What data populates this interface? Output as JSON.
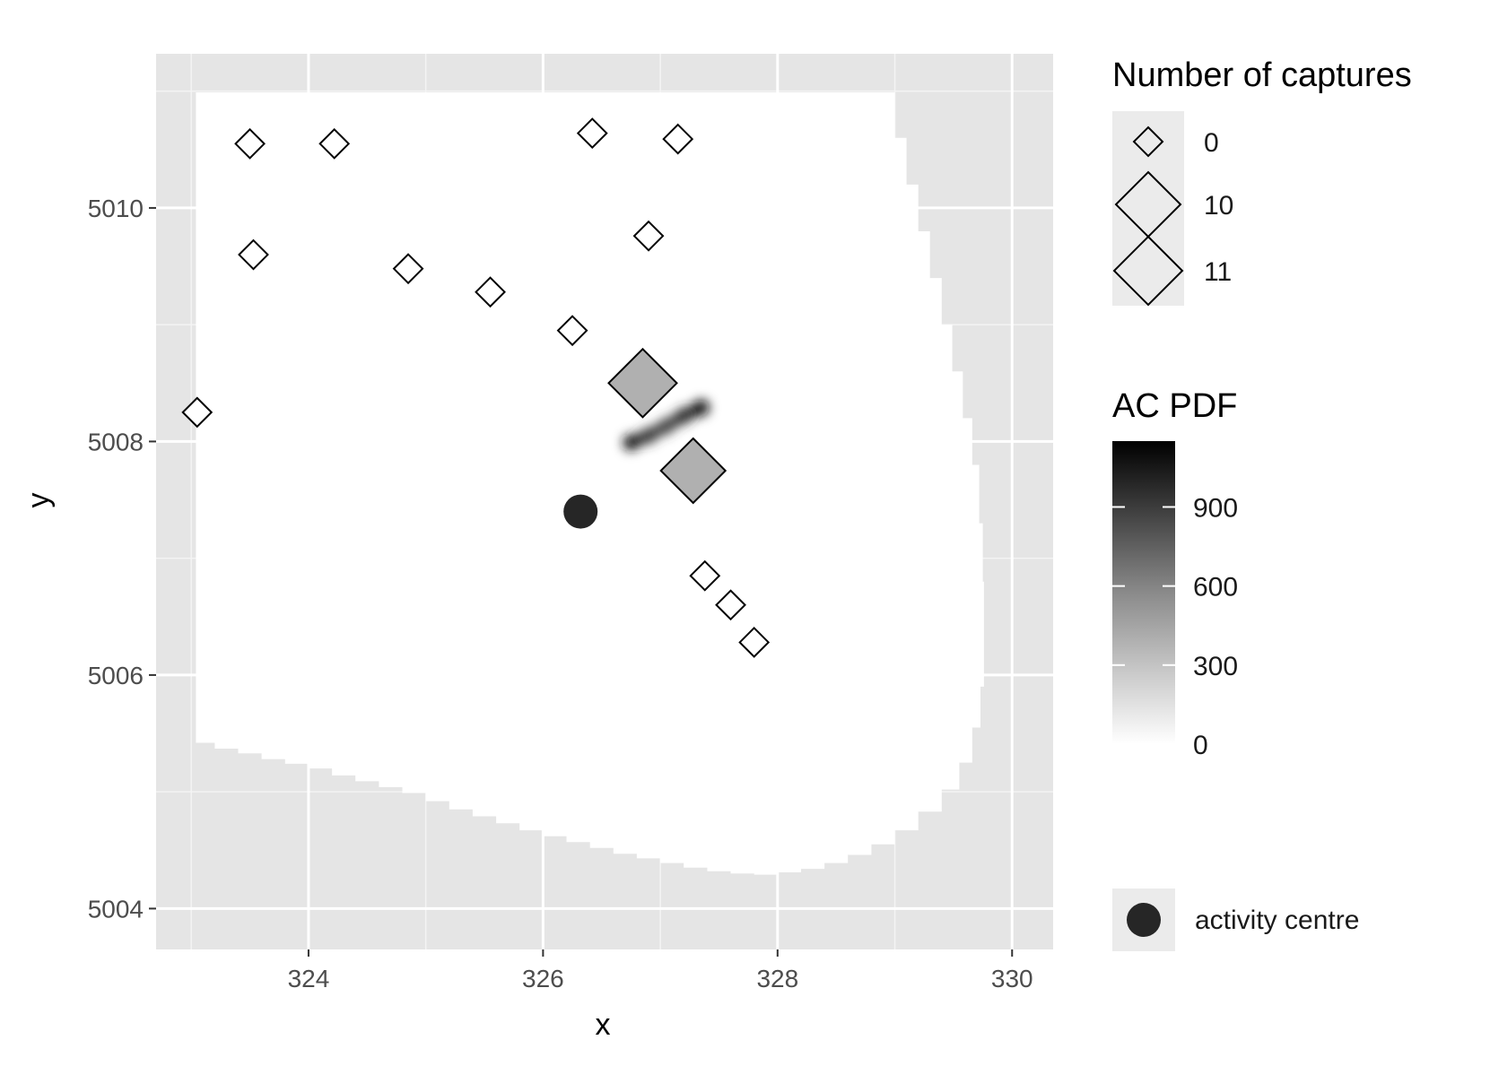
{
  "chart_data": {
    "type": "scatter",
    "xlabel": "x",
    "ylabel": "y",
    "xlim": [
      322.7,
      330.35
    ],
    "ylim": [
      5003.65,
      5011.32
    ],
    "x_ticks": [
      324,
      326,
      328,
      330
    ],
    "y_ticks": [
      5004,
      5006,
      5008,
      5010
    ],
    "grid": true,
    "legend_position": "right",
    "mask": {
      "description_label": "",
      "fill": "#ffffff",
      "left": [
        [
          5010.99,
          323.04
        ],
        [
          5005.42,
          323.04
        ]
      ],
      "bottom": [
        [
          323.04,
          5005.42
        ],
        [
          323.2,
          5005.37
        ],
        [
          323.4,
          5005.33
        ],
        [
          323.6,
          5005.28
        ],
        [
          323.8,
          5005.24
        ],
        [
          324.0,
          5005.2
        ],
        [
          324.2,
          5005.14
        ],
        [
          324.4,
          5005.09
        ],
        [
          324.6,
          5005.04
        ],
        [
          324.8,
          5004.99
        ],
        [
          325.0,
          5004.92
        ],
        [
          325.2,
          5004.85
        ],
        [
          325.4,
          5004.79
        ],
        [
          325.6,
          5004.73
        ],
        [
          325.8,
          5004.67
        ],
        [
          326.0,
          5004.62
        ],
        [
          326.2,
          5004.57
        ],
        [
          326.4,
          5004.52
        ],
        [
          326.6,
          5004.47
        ],
        [
          326.8,
          5004.43
        ],
        [
          327.0,
          5004.39
        ],
        [
          327.2,
          5004.35
        ],
        [
          327.4,
          5004.32
        ],
        [
          327.6,
          5004.3
        ],
        [
          327.8,
          5004.29
        ],
        [
          328.0,
          5004.31
        ],
        [
          328.2,
          5004.34
        ],
        [
          328.4,
          5004.39
        ],
        [
          328.6,
          5004.46
        ],
        [
          328.8,
          5004.55
        ],
        [
          329.0,
          5004.67
        ],
        [
          329.2,
          5004.83
        ],
        [
          329.4,
          5005.02
        ],
        [
          329.55,
          5005.25
        ],
        [
          329.66,
          5005.55
        ],
        [
          329.73,
          5005.9
        ],
        [
          329.76,
          5006.3
        ]
      ],
      "right": [
        [
          5006.3,
          329.76
        ],
        [
          5006.8,
          329.75
        ],
        [
          5007.3,
          329.72
        ],
        [
          5007.8,
          329.66
        ],
        [
          5008.2,
          329.58
        ],
        [
          5008.6,
          329.49
        ],
        [
          5009.0,
          329.4
        ],
        [
          5009.4,
          329.3
        ],
        [
          5009.8,
          329.2
        ],
        [
          5010.2,
          329.1
        ],
        [
          5010.6,
          329.0
        ],
        [
          5010.99,
          328.96
        ]
      ]
    },
    "ac_pdf": {
      "title": "AC PDF",
      "range": [
        0,
        1150
      ],
      "ticks": [
        0,
        300,
        600,
        900
      ],
      "ridge": [
        [
          326.75,
          5007.99,
          1050
        ],
        [
          326.9,
          5008.05,
          900
        ],
        [
          327.05,
          5008.13,
          850
        ],
        [
          327.2,
          5008.22,
          950
        ],
        [
          327.35,
          5008.29,
          1120
        ]
      ]
    },
    "size_legend": {
      "title": "Number of captures",
      "entries": [
        0,
        10,
        11
      ]
    },
    "detectors": [
      {
        "x": 323.5,
        "y": 5010.55,
        "captures": 0
      },
      {
        "x": 324.22,
        "y": 5010.55,
        "captures": 0
      },
      {
        "x": 326.42,
        "y": 5010.64,
        "captures": 0
      },
      {
        "x": 327.15,
        "y": 5010.59,
        "captures": 0
      },
      {
        "x": 323.53,
        "y": 5009.6,
        "captures": 0
      },
      {
        "x": 324.85,
        "y": 5009.48,
        "captures": 0
      },
      {
        "x": 325.55,
        "y": 5009.28,
        "captures": 0
      },
      {
        "x": 326.9,
        "y": 5009.76,
        "captures": 0
      },
      {
        "x": 326.25,
        "y": 5008.95,
        "captures": 0
      },
      {
        "x": 323.05,
        "y": 5008.25,
        "captures": 0
      },
      {
        "x": 326.85,
        "y": 5008.5,
        "captures": 11
      },
      {
        "x": 327.28,
        "y": 5007.75,
        "captures": 10
      },
      {
        "x": 327.38,
        "y": 5006.85,
        "captures": 0
      },
      {
        "x": 327.6,
        "y": 5006.6,
        "captures": 0
      },
      {
        "x": 327.8,
        "y": 5006.28,
        "captures": 0
      }
    ],
    "activity_centre": {
      "label": "activity centre",
      "x": 326.32,
      "y": 5007.4
    }
  }
}
